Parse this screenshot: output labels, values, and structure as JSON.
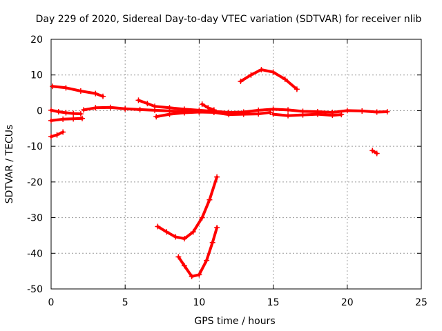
{
  "chart_data": {
    "type": "scatter",
    "title": "Day 229 of 2020, Sidereal Day-to-day VTEC variation (SDTVAR) for receiver nlib",
    "xlabel": "GPS time / hours",
    "ylabel": "SDTVAR / TECUs",
    "xlim": [
      0,
      25
    ],
    "ylim": [
      -50,
      20
    ],
    "x_ticks": [
      0,
      5,
      10,
      15,
      20,
      25
    ],
    "y_ticks": [
      -50,
      -40,
      -30,
      -20,
      -10,
      0,
      10,
      20
    ],
    "grid": true,
    "series_color": "#ff0000",
    "series": [
      {
        "name": "track-upper-left",
        "points": [
          [
            0.1,
            6.8
          ],
          [
            1.0,
            6.4
          ],
          [
            2.0,
            5.5
          ],
          [
            3.0,
            4.8
          ],
          [
            3.5,
            4.0
          ]
        ]
      },
      {
        "name": "track-zero-left",
        "points": [
          [
            0.0,
            0.1
          ],
          [
            0.5,
            -0.3
          ],
          [
            1.0,
            -0.6
          ],
          [
            1.5,
            -0.8
          ],
          [
            2.0,
            -0.9
          ]
        ]
      },
      {
        "name": "track-lower-left",
        "points": [
          [
            0.0,
            -2.8
          ],
          [
            0.8,
            -2.4
          ],
          [
            1.5,
            -2.3
          ],
          [
            2.1,
            -2.2
          ]
        ]
      },
      {
        "name": "track-negative-left",
        "points": [
          [
            0.0,
            -7.3
          ],
          [
            0.4,
            -6.8
          ],
          [
            0.8,
            -6.0
          ]
        ]
      },
      {
        "name": "track-zero-a",
        "points": [
          [
            2.2,
            0.2
          ],
          [
            3.0,
            0.8
          ],
          [
            4.0,
            0.9
          ],
          [
            5.0,
            0.5
          ],
          [
            6.0,
            0.3
          ],
          [
            7.0,
            0.1
          ],
          [
            8.0,
            -0.1
          ],
          [
            9.0,
            -0.3
          ],
          [
            10.0,
            -0.4
          ]
        ]
      },
      {
        "name": "track-zero-b",
        "points": [
          [
            5.9,
            2.9
          ],
          [
            6.5,
            2.0
          ],
          [
            7.0,
            1.2
          ],
          [
            8.0,
            0.8
          ],
          [
            9.0,
            0.4
          ],
          [
            10.0,
            0.1
          ],
          [
            11.0,
            -0.2
          ],
          [
            12.0,
            -0.5
          ],
          [
            13.0,
            -0.4
          ],
          [
            14.0,
            0.1
          ],
          [
            15.0,
            0.4
          ],
          [
            16.0,
            0.2
          ],
          [
            17.0,
            -0.2
          ],
          [
            18.0,
            -0.3
          ],
          [
            19.0,
            -0.5
          ],
          [
            20.0,
            0.0
          ],
          [
            21.0,
            -0.1
          ],
          [
            22.0,
            -0.4
          ],
          [
            22.7,
            -0.3
          ]
        ]
      },
      {
        "name": "track-zero-c",
        "points": [
          [
            7.1,
            -1.7
          ],
          [
            8.0,
            -1.0
          ],
          [
            9.0,
            -0.6
          ],
          [
            10.0,
            -0.4
          ],
          [
            11.0,
            -0.5
          ],
          [
            12.0,
            -1.1
          ],
          [
            13.0,
            -1.0
          ],
          [
            14.0,
            -0.9
          ],
          [
            14.8,
            -0.5
          ]
        ]
      },
      {
        "name": "track-spike-10",
        "points": [
          [
            10.2,
            1.8
          ],
          [
            10.6,
            0.8
          ],
          [
            11.0,
            0.2
          ]
        ]
      },
      {
        "name": "track-arc-high",
        "points": [
          [
            12.8,
            8.2
          ],
          [
            13.5,
            10.0
          ],
          [
            14.2,
            11.5
          ],
          [
            15.0,
            10.8
          ],
          [
            15.8,
            8.8
          ],
          [
            16.6,
            6.0
          ]
        ]
      },
      {
        "name": "track-short-20",
        "points": [
          [
            15.0,
            -1.0
          ],
          [
            16.0,
            -1.4
          ],
          [
            17.0,
            -1.2
          ],
          [
            18.0,
            -1.0
          ],
          [
            19.0,
            -1.3
          ],
          [
            19.6,
            -1.1
          ]
        ]
      },
      {
        "name": "track-dip-22",
        "points": [
          [
            21.7,
            -11.2
          ],
          [
            22.0,
            -12.0
          ]
        ]
      },
      {
        "name": "track-curve-upper-v",
        "points": [
          [
            7.2,
            -32.5
          ],
          [
            7.8,
            -34.0
          ],
          [
            8.4,
            -35.4
          ],
          [
            9.0,
            -35.9
          ],
          [
            9.6,
            -34.0
          ],
          [
            10.2,
            -30.0
          ],
          [
            10.7,
            -25.0
          ],
          [
            11.2,
            -18.6
          ]
        ]
      },
      {
        "name": "track-curve-lower-v",
        "points": [
          [
            8.6,
            -41.0
          ],
          [
            9.0,
            -43.5
          ],
          [
            9.5,
            -46.5
          ],
          [
            10.0,
            -46.0
          ],
          [
            10.5,
            -42.0
          ],
          [
            10.9,
            -37.0
          ],
          [
            11.2,
            -32.8
          ]
        ]
      }
    ]
  }
}
